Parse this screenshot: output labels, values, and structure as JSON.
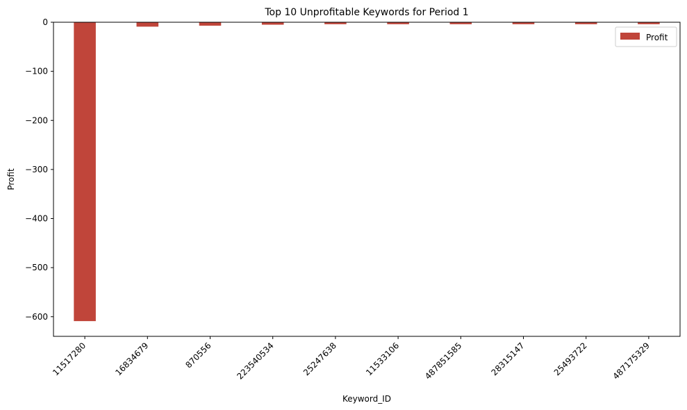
{
  "chart_data": {
    "type": "bar",
    "title": "Top 10 Unprofitable Keywords for Period 1",
    "xlabel": "Keyword_ID",
    "ylabel": "Profit",
    "categories": [
      "11517280",
      "16834679",
      "870556",
      "223540534",
      "25247638",
      "11533106",
      "487851585",
      "28315147",
      "25493722",
      "487175329"
    ],
    "series": [
      {
        "name": "Profit",
        "values": [
          -609,
          -9,
          -7,
          -5,
          -4,
          -4,
          -4,
          -4,
          -4,
          -4
        ],
        "color": "#c0453a"
      }
    ],
    "ylim": [
      -640,
      0
    ],
    "yticks": [
      0,
      -100,
      -200,
      -300,
      -400,
      -500,
      -600
    ],
    "ytick_labels": [
      "0",
      "−100",
      "−200",
      "−300",
      "−400",
      "−500",
      "−600"
    ],
    "grid": false,
    "legend_position": "top-right"
  }
}
